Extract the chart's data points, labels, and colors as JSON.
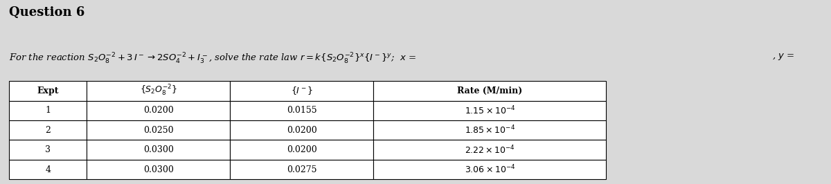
{
  "title": "Question 6",
  "question_text": "For the reaction S",
  "bg_color": "#d9d9d9",
  "table_header": [
    "Expt",
    "{S₂O₈⁻²}",
    "{I⁻}",
    "Rate (M/min)"
  ],
  "expt_col": [
    "1",
    "2",
    "3",
    "4"
  ],
  "s2o8_col": [
    "0.0200",
    "0.0250",
    "0.0300",
    "0.0300"
  ],
  "i_col": [
    "0.0155",
    "0.0200",
    "0.0200",
    "0.0275"
  ],
  "rate_col": [
    "1.15 x 10-4",
    "1.85 x 10-4",
    "2.22 x 10-4",
    "3.06 x 10-4"
  ],
  "title_fontsize": 13,
  "text_fontsize": 10,
  "header_fontsize": 10
}
